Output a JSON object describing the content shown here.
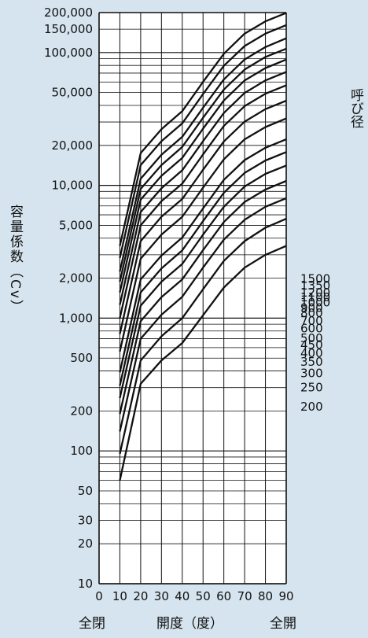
{
  "chart_data": {
    "type": "line",
    "ylabel": "容量係数（Cv）",
    "right_label": "呼び径",
    "xaxis": {
      "ticks": [
        "0",
        "10",
        "20",
        "30",
        "40",
        "50",
        "60",
        "70",
        "80",
        "90"
      ],
      "range": [
        0,
        90
      ],
      "bottom_labels": {
        "left": "全閉",
        "center": "開度（度）",
        "right": "全開"
      }
    },
    "yaxis": {
      "scale": "log",
      "range": [
        10,
        200000
      ],
      "ticks": [
        {
          "v": 10,
          "t": "10"
        },
        {
          "v": 20,
          "t": "20"
        },
        {
          "v": 30,
          "t": "30"
        },
        {
          "v": 50,
          "t": "50"
        },
        {
          "v": 100,
          "t": "100"
        },
        {
          "v": 200,
          "t": "200"
        },
        {
          "v": 500,
          "t": "500"
        },
        {
          "v": 1000,
          "t": "1,000"
        },
        {
          "v": 2000,
          "t": "2,000"
        },
        {
          "v": 5000,
          "t": "5,000"
        },
        {
          "v": 10000,
          "t": "10,000"
        },
        {
          "v": 20000,
          "t": "20,000"
        },
        {
          "v": 50000,
          "t": "50,000"
        },
        {
          "v": 100000,
          "t": "100,000"
        },
        {
          "v": 150000,
          "t": "150,000"
        },
        {
          "v": 200000,
          "t": "200,000"
        }
      ]
    },
    "grid": true,
    "x": [
      10,
      20,
      30,
      40,
      50,
      60,
      70,
      80,
      90
    ],
    "series": [
      {
        "name": "200",
        "values": [
          60,
          320,
          480,
          650,
          1050,
          1700,
          2400,
          3000,
          3500
        ]
      },
      {
        "name": "250",
        "values": [
          95,
          480,
          730,
          1000,
          1650,
          2700,
          3800,
          4800,
          5600
        ]
      },
      {
        "name": "300",
        "values": [
          140,
          700,
          1060,
          1450,
          2400,
          3900,
          5500,
          6900,
          8000
        ]
      },
      {
        "name": "350",
        "values": [
          190,
          950,
          1440,
          1960,
          3250,
          5300,
          7500,
          9300,
          10800
        ]
      },
      {
        "name": "400",
        "values": [
          250,
          1240,
          1880,
          2560,
          4250,
          6900,
          9800,
          12200,
          14100
        ]
      },
      {
        "name": "450",
        "values": [
          310,
          1560,
          2370,
          3240,
          5380,
          8800,
          12400,
          15400,
          17800
        ]
      },
      {
        "name": "500",
        "values": [
          390,
          1960,
          2960,
          4050,
          6700,
          11000,
          15500,
          19200,
          22200
        ]
      },
      {
        "name": "600",
        "values": [
          560,
          2800,
          4250,
          5800,
          9600,
          15700,
          22200,
          27500,
          31900
        ]
      },
      {
        "name": "700",
        "values": [
          760,
          3800,
          5800,
          7900,
          13100,
          21400,
          30200,
          37500,
          43400
        ]
      },
      {
        "name": "800",
        "values": [
          1000,
          5000,
          7600,
          10300,
          17100,
          28000,
          39500,
          49000,
          56700
        ]
      },
      {
        "name": "900",
        "values": [
          1260,
          6300,
          9500,
          13000,
          21500,
          35100,
          49700,
          61700,
          71500
        ]
      },
      {
        "name": "1000",
        "values": [
          1560,
          7800,
          11800,
          16100,
          26700,
          43600,
          61600,
          76500,
          88600
        ]
      },
      {
        "name": "1100",
        "values": [
          1880,
          9400,
          14200,
          19500,
          32300,
          52700,
          74500,
          92600,
          107000
        ]
      },
      {
        "name": "1200",
        "values": [
          2240,
          11200,
          17000,
          23200,
          38400,
          62800,
          88700,
          110000,
          128000
        ]
      },
      {
        "name": "1350",
        "values": [
          2840,
          14200,
          21500,
          29300,
          48700,
          79500,
          112000,
          139000,
          161000
        ]
      },
      {
        "name": "1500",
        "values": [
          3500,
          17500,
          26500,
          36200,
          60100,
          98000,
          139000,
          172000,
          199000
        ]
      }
    ],
    "right_ticks": [
      {
        "t": "1500",
        "y": 1980
      },
      {
        "t": "1350",
        "y": 1755
      },
      {
        "t": "1200",
        "y": 1560
      },
      {
        "t": "1100",
        "y": 1435
      },
      {
        "t": "1000",
        "y": 1310
      },
      {
        "t": "900",
        "y": 1195
      },
      {
        "t": "800",
        "y": 1090
      },
      {
        "t": "700",
        "y": 950
      },
      {
        "t": "600",
        "y": 835
      },
      {
        "t": "500",
        "y": 705
      },
      {
        "t": "450",
        "y": 628
      },
      {
        "t": "400",
        "y": 545
      },
      {
        "t": "350",
        "y": 467
      },
      {
        "t": "300",
        "y": 385
      },
      {
        "t": "250",
        "y": 300
      },
      {
        "t": "200",
        "y": 215
      }
    ],
    "colors": {
      "background": "#d5e4ee",
      "plot": "#ffffff",
      "lines": "#111111"
    }
  }
}
